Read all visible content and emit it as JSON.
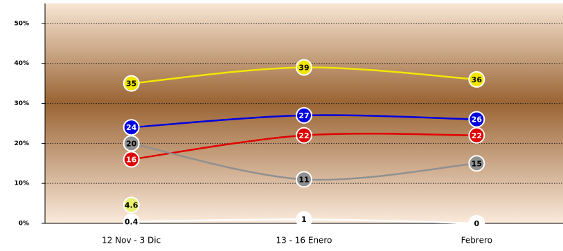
{
  "chart_data": {
    "type": "line",
    "categories": [
      "12 Nov - 3 Dic",
      "13 - 16 Enero",
      "Febrero"
    ],
    "series": [
      {
        "color": "#f2e600",
        "values": [
          35,
          39,
          36
        ]
      },
      {
        "color": "#0000e0",
        "values": [
          24,
          27,
          26
        ]
      },
      {
        "color": "#e00000",
        "values": [
          16,
          22,
          22
        ]
      },
      {
        "color": "#909090",
        "values": [
          20,
          11,
          15
        ]
      },
      {
        "color": "#e8f070",
        "values": [
          4.6,
          null,
          null
        ]
      },
      {
        "color": "#ffffff",
        "values": [
          0.4,
          1,
          0
        ]
      }
    ],
    "ylim": [
      0,
      55
    ],
    "yticks": [
      {
        "value": 0,
        "label": "0%"
      },
      {
        "value": 10,
        "label": "10%"
      },
      {
        "value": 20,
        "label": "20%"
      },
      {
        "value": 30,
        "label": "30%"
      },
      {
        "value": 40,
        "label": "40%"
      },
      {
        "value": 50,
        "label": "50%"
      }
    ],
    "grid": true
  }
}
